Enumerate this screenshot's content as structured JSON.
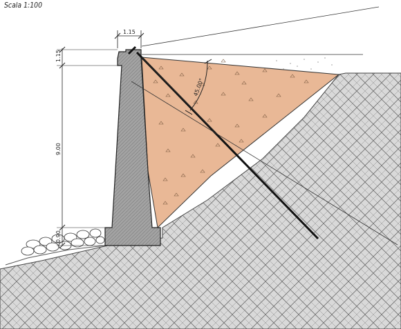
{
  "header": {
    "scale_label": "Scala 1:100"
  },
  "dimensions": {
    "top_width": "1.15",
    "top_height": "1.15",
    "stem_height": "9.00",
    "base_height": "0.90"
  },
  "angle_label": "45.00°",
  "colors": {
    "soil_fill": "#e9b896",
    "ground_fill": "#d6d6d6",
    "wall_fill": "#9a9a9a",
    "line": "#1a1a1a"
  }
}
